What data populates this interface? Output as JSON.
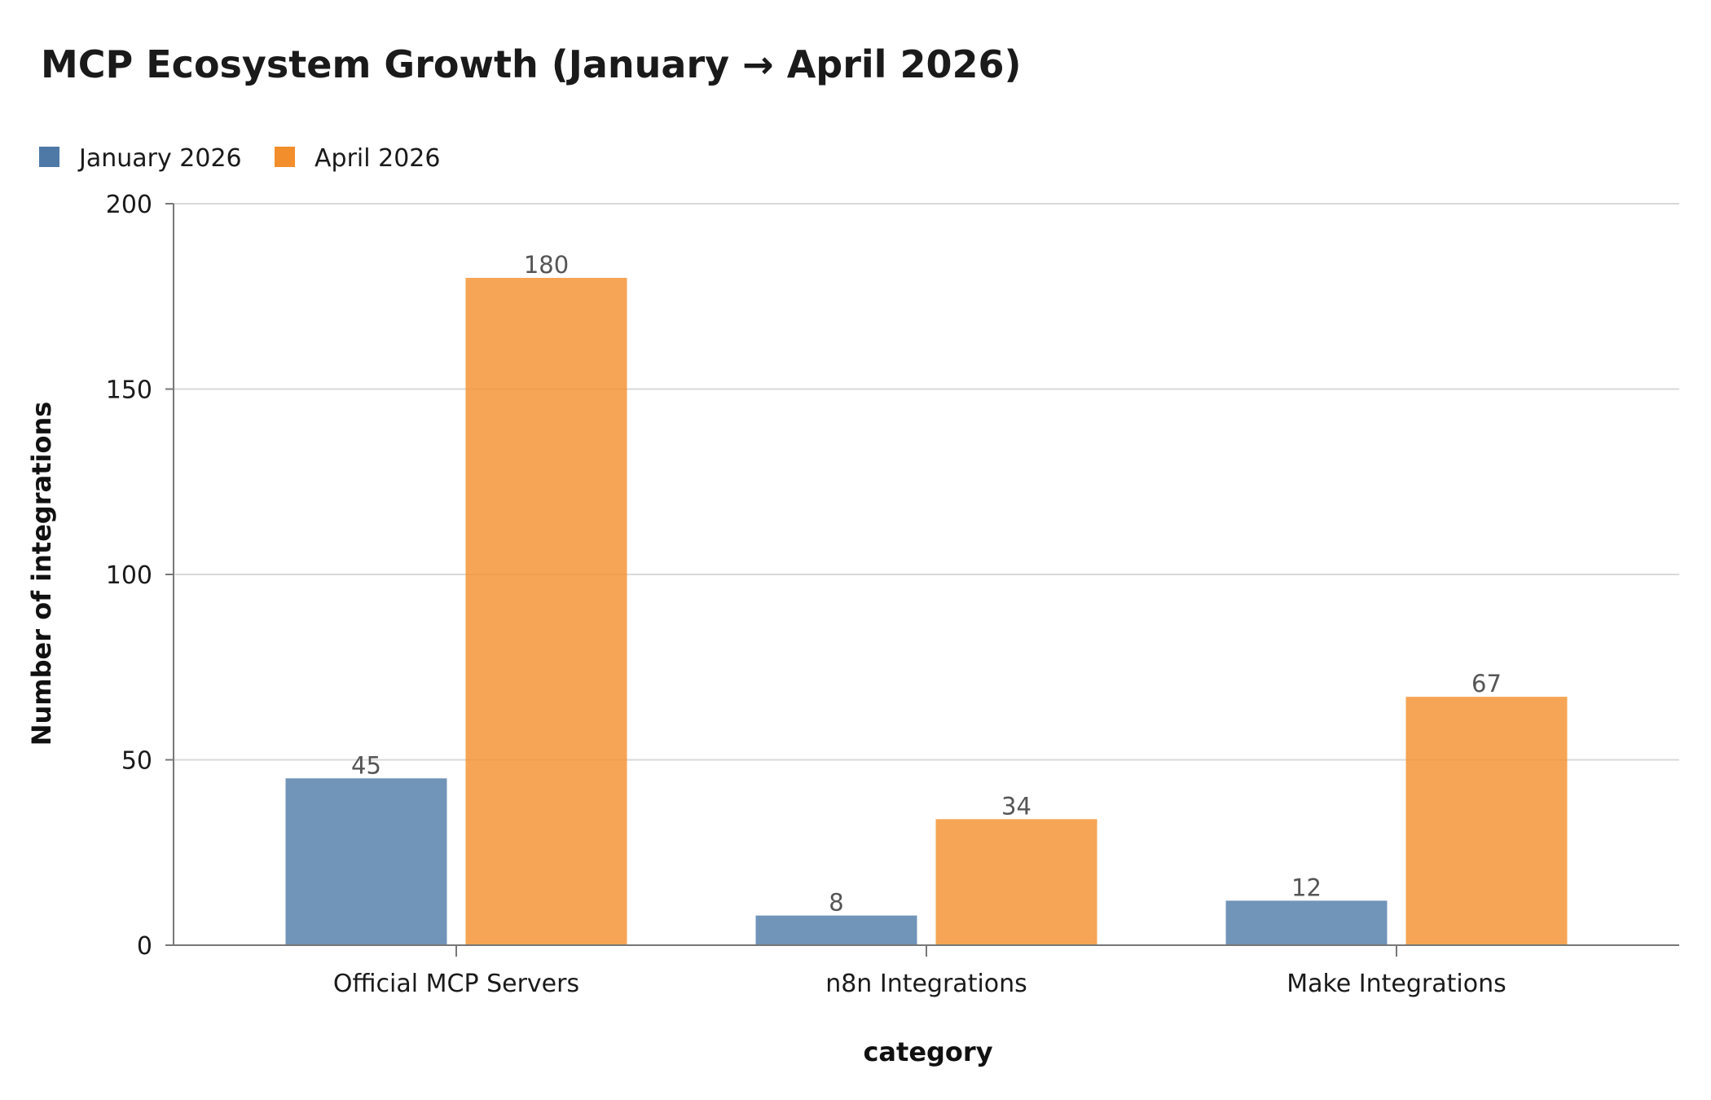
{
  "chart_data": {
    "type": "bar",
    "title": "MCP Ecosystem Growth (January → April 2026)",
    "xlabel": "category",
    "ylabel": "Number of integrations",
    "categories": [
      "Official MCP Servers",
      "n8n Integrations",
      "Make Integrations"
    ],
    "series": [
      {
        "name": "January 2026",
        "color": "#4e79a7",
        "values": [
          45,
          8,
          12
        ]
      },
      {
        "name": "April 2026",
        "color": "#f28e2b",
        "values": [
          180,
          34,
          67
        ]
      }
    ],
    "ylim": [
      0,
      200
    ],
    "yticks": [
      0,
      50,
      100,
      150,
      200
    ],
    "grid": true,
    "legend_position": "top-left"
  }
}
